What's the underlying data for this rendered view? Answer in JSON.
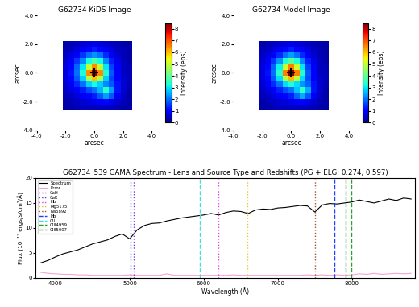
{
  "chart_data": [
    {
      "type": "heatmap",
      "title": "G62734 KiDS Image",
      "x_label": "arcsec",
      "y_label": "arcsec",
      "xlim": [
        -4,
        4
      ],
      "ylim": [
        -4,
        4
      ],
      "xticks": [
        {
          "value": -4,
          "label": "-4.0"
        },
        {
          "value": -2,
          "label": "-2.0"
        },
        {
          "value": 0,
          "label": "0.0"
        },
        {
          "value": 2,
          "label": "2.0"
        },
        {
          "value": 4,
          "label": "4.0"
        }
      ],
      "yticks": [
        {
          "value": -4,
          "label": "-4.0"
        },
        {
          "value": -2,
          "label": "-2.0"
        },
        {
          "value": 0,
          "label": "0.0"
        },
        {
          "value": 2,
          "label": "2.0"
        },
        {
          "value": 4,
          "label": "4.0"
        }
      ],
      "extent": [
        -2.2,
        2.6,
        -2.6,
        2.2
      ],
      "color": "jet",
      "center": {
        "x": 0.0,
        "y": 0.0
      },
      "marker": "+",
      "colorbar": {
        "label": "Intensity (eps)",
        "range": [
          0,
          8.5
        ],
        "ticks": [
          0,
          1,
          2,
          3,
          4,
          5,
          6,
          7,
          8
        ]
      },
      "cells": [
        [
          0.3,
          0.4,
          0.5,
          0.6,
          0.7,
          0.8,
          0.7,
          0.6,
          0.5,
          0.4,
          0.3,
          0.3
        ],
        [
          0.4,
          0.5,
          0.7,
          0.9,
          1.1,
          1.3,
          1.1,
          0.9,
          0.7,
          0.5,
          0.4,
          0.3
        ],
        [
          0.5,
          0.7,
          1.0,
          1.5,
          2.0,
          2.3,
          2.0,
          1.4,
          1.0,
          0.6,
          0.4,
          0.3
        ],
        [
          0.6,
          0.9,
          1.5,
          2.2,
          3.2,
          3.8,
          3.2,
          2.2,
          1.3,
          0.8,
          0.5,
          0.3
        ],
        [
          0.7,
          1.1,
          1.9,
          3.0,
          5.0,
          6.5,
          5.0,
          3.0,
          1.6,
          0.9,
          0.5,
          0.4
        ],
        [
          0.7,
          1.2,
          2.0,
          3.3,
          6.5,
          8.3,
          6.5,
          3.3,
          1.8,
          1.0,
          0.5,
          0.4
        ],
        [
          0.7,
          1.1,
          1.8,
          2.8,
          4.8,
          6.0,
          4.8,
          2.8,
          1.6,
          1.0,
          0.6,
          0.4
        ],
        [
          0.6,
          0.9,
          1.4,
          2.0,
          2.8,
          3.2,
          2.8,
          2.2,
          1.8,
          1.2,
          0.6,
          0.4
        ],
        [
          0.5,
          0.7,
          1.0,
          1.3,
          1.7,
          2.0,
          2.6,
          3.4,
          2.4,
          1.2,
          0.6,
          0.3
        ],
        [
          0.4,
          0.5,
          0.7,
          0.9,
          1.1,
          1.3,
          1.8,
          2.4,
          1.8,
          0.9,
          0.5,
          0.3
        ],
        [
          0.3,
          0.4,
          0.5,
          0.6,
          0.7,
          0.8,
          0.9,
          1.0,
          0.8,
          0.6,
          0.4,
          0.3
        ],
        [
          0.3,
          0.3,
          0.4,
          0.5,
          0.5,
          0.5,
          0.5,
          0.5,
          0.5,
          0.4,
          0.3,
          0.3
        ]
      ]
    },
    {
      "type": "heatmap",
      "title": "G62734 Model Image",
      "x_label": "arcsec",
      "y_label": "arcsec",
      "xlim": [
        -4,
        4
      ],
      "ylim": [
        -4,
        4
      ],
      "xticks": [
        {
          "value": -4,
          "label": "-4.0"
        },
        {
          "value": -2,
          "label": "-2.0"
        },
        {
          "value": 0,
          "label": "0.0"
        },
        {
          "value": 2,
          "label": "2.0"
        },
        {
          "value": 4,
          "label": "4.0"
        }
      ],
      "yticks": [
        {
          "value": -4,
          "label": "-4.0"
        },
        {
          "value": -2,
          "label": "-2.0"
        },
        {
          "value": 0,
          "label": "0.0"
        },
        {
          "value": 2,
          "label": "2.0"
        },
        {
          "value": 4,
          "label": "4.0"
        }
      ],
      "extent": [
        -2.2,
        2.6,
        -2.6,
        2.2
      ],
      "color": "jet",
      "center": {
        "x": 0.0,
        "y": 0.0
      },
      "marker": "+",
      "colorbar": {
        "label": "Intensity (eps)",
        "range": [
          0,
          8.5
        ],
        "ticks": [
          0,
          1,
          2,
          3,
          4,
          5,
          6,
          7,
          8
        ]
      },
      "cells": [
        [
          0.3,
          0.4,
          0.5,
          0.6,
          0.7,
          0.8,
          0.7,
          0.6,
          0.5,
          0.4,
          0.3,
          0.3
        ],
        [
          0.4,
          0.5,
          0.7,
          0.9,
          1.1,
          1.3,
          1.1,
          0.9,
          0.7,
          0.5,
          0.4,
          0.3
        ],
        [
          0.5,
          0.7,
          1.0,
          1.4,
          2.0,
          2.4,
          2.0,
          1.4,
          0.9,
          0.6,
          0.4,
          0.3
        ],
        [
          0.6,
          0.9,
          1.5,
          2.3,
          3.3,
          3.9,
          3.3,
          2.2,
          1.3,
          0.8,
          0.5,
          0.3
        ],
        [
          0.7,
          1.1,
          1.9,
          3.1,
          5.1,
          6.6,
          5.1,
          3.0,
          1.6,
          0.9,
          0.5,
          0.4
        ],
        [
          0.7,
          1.2,
          2.0,
          3.4,
          6.6,
          8.4,
          6.6,
          3.4,
          1.8,
          1.0,
          0.5,
          0.4
        ],
        [
          0.7,
          1.1,
          1.8,
          2.9,
          4.9,
          6.1,
          4.9,
          2.9,
          1.7,
          1.0,
          0.6,
          0.4
        ],
        [
          0.6,
          0.9,
          1.4,
          2.0,
          2.9,
          3.3,
          2.9,
          2.3,
          1.9,
          1.2,
          0.6,
          0.4
        ],
        [
          0.5,
          0.7,
          1.0,
          1.3,
          1.7,
          2.0,
          2.7,
          3.5,
          2.5,
          1.2,
          0.6,
          0.3
        ],
        [
          0.4,
          0.5,
          0.7,
          0.9,
          1.1,
          1.3,
          1.9,
          2.5,
          1.8,
          0.9,
          0.5,
          0.3
        ],
        [
          0.3,
          0.4,
          0.5,
          0.6,
          0.7,
          0.8,
          0.9,
          1.0,
          0.8,
          0.6,
          0.4,
          0.3
        ],
        [
          0.3,
          0.3,
          0.4,
          0.5,
          0.5,
          0.5,
          0.5,
          0.5,
          0.5,
          0.4,
          0.3,
          0.3
        ]
      ]
    },
    {
      "type": "line",
      "title": "G62734_539 GAMA Spectrum - Lens and Source Type and Redshifts (PG + ELG; 0.274, 0.597)",
      "x_label": "Wavelength (Å)",
      "y_label": "Flux (10⁻¹⁷ ergs/s/cm²/Å)",
      "xlim": [
        3730,
        8850
      ],
      "xticks": [
        4000,
        5000,
        6000,
        7000,
        8000
      ],
      "ylim": [
        0,
        20
      ],
      "yticks": [
        0,
        5,
        10,
        15,
        20
      ],
      "legend": "upper left",
      "x": [
        3800,
        3900,
        4000,
        4100,
        4200,
        4300,
        4400,
        4500,
        4600,
        4700,
        4800,
        4900,
        5000,
        5100,
        5200,
        5300,
        5400,
        5500,
        5600,
        5700,
        5800,
        5900,
        6000,
        6100,
        6200,
        6300,
        6400,
        6500,
        6600,
        6700,
        6800,
        6900,
        7000,
        7100,
        7200,
        7300,
        7400,
        7500,
        7600,
        7700,
        7800,
        7900,
        8000,
        8100,
        8200,
        8300,
        8400,
        8500,
        8600,
        8700,
        8800
      ],
      "series": [
        {
          "name": "Spectrum",
          "color": "#000000",
          "line_style": "solid",
          "values": [
            3.0,
            3.5,
            4.2,
            4.8,
            5.2,
            5.6,
            6.2,
            6.8,
            7.2,
            7.6,
            8.3,
            8.8,
            7.8,
            9.6,
            10.5,
            10.9,
            11.0,
            11.4,
            11.7,
            12.0,
            12.2,
            12.4,
            12.6,
            12.9,
            12.6,
            13.1,
            13.4,
            13.3,
            12.9,
            13.6,
            13.8,
            13.7,
            14.0,
            14.1,
            14.3,
            14.5,
            14.4,
            13.2,
            14.6,
            14.9,
            14.8,
            15.0,
            15.2,
            15.6,
            15.3,
            15.0,
            15.4,
            15.8,
            15.5,
            16.0,
            15.8
          ]
        },
        {
          "name": "Error",
          "color": "#f5a3d6",
          "line_style": "solid",
          "values": [
            1.1,
            0.9,
            0.8,
            0.7,
            0.7,
            0.6,
            0.6,
            0.5,
            0.5,
            0.5,
            0.5,
            0.5,
            0.6,
            0.5,
            0.5,
            0.5,
            0.5,
            0.8,
            0.5,
            0.5,
            0.5,
            0.5,
            0.5,
            0.5,
            0.5,
            0.5,
            0.6,
            0.5,
            0.5,
            0.5,
            0.5,
            0.5,
            0.5,
            0.5,
            0.5,
            0.5,
            0.6,
            0.5,
            0.6,
            0.5,
            0.6,
            0.5,
            0.6,
            0.8,
            0.7,
            0.9,
            0.7,
            0.8,
            0.9,
            0.8,
            0.9
          ]
        }
      ],
      "lines": [
        {
          "name": "CaH",
          "x": 5056,
          "color": "#8a2be2",
          "line_style": "dotted"
        },
        {
          "name": "CaK",
          "x": 5011,
          "color": "#3f3fd0",
          "line_style": "dotted"
        },
        {
          "name": "Hb",
          "x": 6193,
          "color": "#e040e0",
          "line_style": "dotted"
        },
        {
          "name": "Mg5175",
          "x": 6593,
          "color": "#e8c030",
          "line_style": "dotted"
        },
        {
          "name": "Na5892",
          "x": 7506,
          "color": "#a0522d",
          "line_style": "dotted"
        },
        {
          "name": "Hb",
          "x": 7763,
          "color": "#1f3fff",
          "line_style": "dashed"
        },
        {
          "name": "OII",
          "x": 5952,
          "color": "#40e0e0",
          "line_style": "dashed"
        },
        {
          "name": "OIII4959",
          "x": 7920,
          "color": "#2ca02c",
          "line_style": "dashed"
        },
        {
          "name": "OIII5007",
          "x": 7996,
          "color": "#2ca02c",
          "line_style": "dashed"
        }
      ]
    }
  ]
}
